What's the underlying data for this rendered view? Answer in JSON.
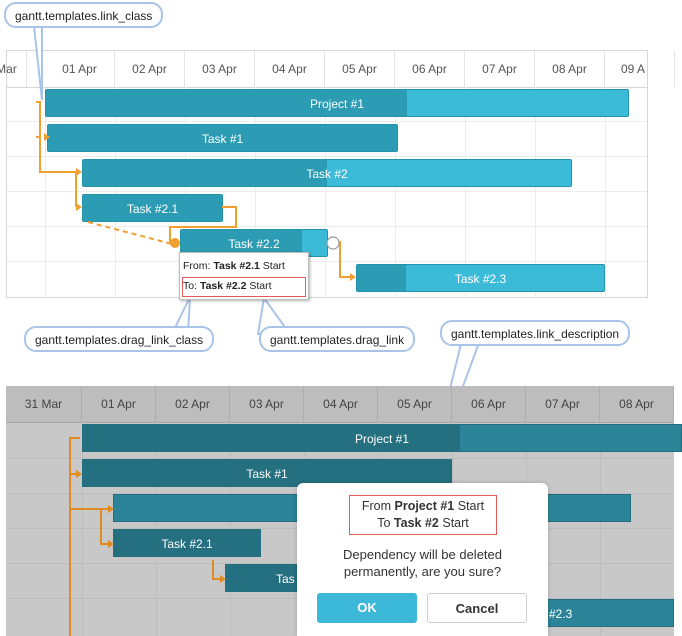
{
  "callouts": {
    "link_class": "gantt.templates.link_class",
    "drag_link_class": "gantt.templates.drag_link_class",
    "drag_link": "gantt.templates.drag_link",
    "link_description": "gantt.templates.link_description"
  },
  "gantt_top": {
    "scale": [
      "Mar",
      "01 Apr",
      "02 Apr",
      "03 Apr",
      "04 Apr",
      "05 Apr",
      "06 Apr",
      "07 Apr",
      "08 Apr",
      "09 A"
    ],
    "tasks": [
      {
        "label": "Project #1",
        "progress": 0.62
      },
      {
        "label": "Task #1",
        "progress": 1.0
      },
      {
        "label": "Task #2",
        "progress": 0.5
      },
      {
        "label": "Task #2.1",
        "progress": 1.0
      },
      {
        "label": "Task #2.2",
        "progress": 0.83
      },
      {
        "label": "Task #2.3",
        "progress": 0.2
      }
    ],
    "tooltip": {
      "from_prefix": "From:",
      "from_task": "Task #2.1",
      "from_side": "Start",
      "to_prefix": "To:",
      "to_task": "Task #2.2",
      "to_side": "Start"
    }
  },
  "gantt_bottom": {
    "scale": [
      "31 Mar",
      "01 Apr",
      "02 Apr",
      "03 Apr",
      "04 Apr",
      "05 Apr",
      "06 Apr",
      "07 Apr",
      "08 Apr"
    ],
    "tasks": [
      {
        "label": "Project #1"
      },
      {
        "label": "Task #1"
      },
      {
        "label": "Task #2.1"
      },
      {
        "label": "Tas"
      },
      {
        "label": "#2.3"
      }
    ]
  },
  "modal": {
    "from_prefix": "From",
    "from_task": "Project #1",
    "from_side": "Start",
    "to_prefix": "To",
    "to_task": "Task #2",
    "to_side": "Start",
    "message_line1": "Dependency will be deleted",
    "message_line2": "permanently, are you sure?",
    "ok_label": "OK",
    "cancel_label": "Cancel"
  },
  "colors": {
    "link_orange": "#f0a030",
    "bar_light": "#3cbbd9",
    "bar_dark": "#2b9cb3",
    "callout_border": "#a8c4e8",
    "highlight_red": "#e25a5a"
  }
}
